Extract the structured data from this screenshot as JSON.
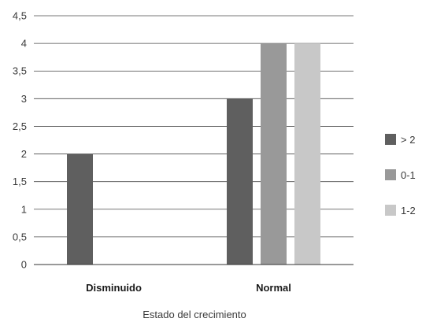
{
  "chart_data": {
    "type": "bar",
    "title": "",
    "xlabel": "Estado del crecimiento",
    "ylabel": "",
    "ylim": [
      0,
      4.5
    ],
    "yticks": [
      "0",
      "0,5",
      "1",
      "1,5",
      "2",
      "2,5",
      "3",
      "3,5",
      "4",
      "4,5"
    ],
    "ytick_values": [
      0,
      0.5,
      1,
      1.5,
      2,
      2.5,
      3,
      3.5,
      4,
      4.5
    ],
    "categories": [
      "Disminuido",
      "Normal"
    ],
    "series": [
      {
        "name": "> 2",
        "color": "#5f5f5f",
        "values": [
          2,
          3
        ]
      },
      {
        "name": "0-1",
        "color": "#999999",
        "values": [
          0,
          4
        ]
      },
      {
        "name": "1-2",
        "color": "#c8c8c8",
        "values": [
          0,
          4
        ]
      }
    ],
    "grid": true,
    "legend_position": "right"
  }
}
